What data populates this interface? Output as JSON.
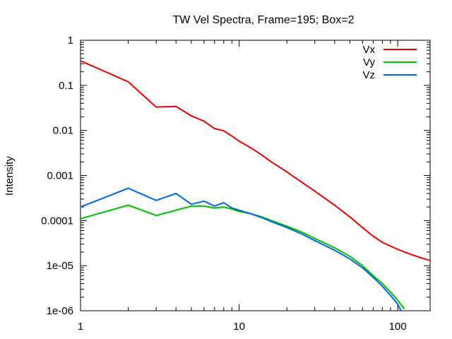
{
  "chart_data": {
    "type": "line",
    "title": "TW Vel Spectra, Frame=195; Box=2",
    "xlabel": "",
    "ylabel": "Intensity",
    "xscale": "log",
    "yscale": "log",
    "xlim": [
      1,
      160
    ],
    "ylim": [
      1e-06,
      1
    ],
    "x_ticks": [
      {
        "value": 1,
        "label": "1"
      },
      {
        "value": 10,
        "label": "10"
      },
      {
        "value": 100,
        "label": "100"
      }
    ],
    "y_ticks": [
      {
        "value": 1,
        "label": "1"
      },
      {
        "value": 0.1,
        "label": "0.1"
      },
      {
        "value": 0.01,
        "label": "0.01"
      },
      {
        "value": 0.001,
        "label": "0.001"
      },
      {
        "value": 0.0001,
        "label": "0.0001"
      },
      {
        "value": 1e-05,
        "label": "1e-05"
      },
      {
        "value": 1e-06,
        "label": "1e-06"
      }
    ],
    "grid": false,
    "legend_position": "top-right",
    "series": [
      {
        "name": "Vx",
        "color": "#dd0000",
        "x": [
          1,
          2,
          3,
          4,
          5,
          6,
          7,
          8,
          9,
          10,
          12,
          14,
          16,
          20,
          25,
          30,
          40,
          50,
          60,
          70,
          80,
          100,
          120,
          140,
          160
        ],
        "y": [
          0.35,
          0.12,
          0.033,
          0.034,
          0.021,
          0.016,
          0.011,
          0.0098,
          0.0075,
          0.0058,
          0.004,
          0.0028,
          0.002,
          0.0012,
          0.0007,
          0.00045,
          0.00022,
          0.00012,
          7e-05,
          4.5e-05,
          3.3e-05,
          2.3e-05,
          1.8e-05,
          1.5e-05,
          1.3e-05
        ]
      },
      {
        "name": "Vy",
        "color": "#00bb00",
        "x": [
          1,
          2,
          3,
          4,
          5,
          6,
          7,
          8,
          9,
          10,
          12,
          14,
          16,
          20,
          25,
          30,
          40,
          50,
          60,
          70,
          80,
          90,
          100,
          110
        ],
        "y": [
          0.00011,
          0.00022,
          0.00013,
          0.00017,
          0.00021,
          0.00021,
          0.00019,
          0.0002,
          0.00018,
          0.00016,
          0.00014,
          0.00012,
          0.0001,
          7.5e-05,
          5.5e-05,
          4e-05,
          2.5e-05,
          1.6e-05,
          1e-05,
          6e-06,
          4e-06,
          2.6e-06,
          1.7e-06,
          1.1e-06
        ]
      },
      {
        "name": "Vz",
        "color": "#0066dd",
        "x": [
          1,
          2,
          3,
          4,
          5,
          6,
          7,
          8,
          9,
          10,
          12,
          14,
          16,
          20,
          25,
          30,
          40,
          50,
          60,
          70,
          80,
          90,
          100,
          105
        ],
        "y": [
          0.0002,
          0.00052,
          0.00028,
          0.0004,
          0.00023,
          0.00027,
          0.00021,
          0.00025,
          0.00019,
          0.00017,
          0.00014,
          0.000115,
          9.5e-05,
          7e-05,
          5e-05,
          3.6e-05,
          2.2e-05,
          1.4e-05,
          9e-06,
          5.5e-06,
          3.5e-06,
          2.2e-06,
          1.4e-06,
          1e-06
        ]
      }
    ]
  }
}
